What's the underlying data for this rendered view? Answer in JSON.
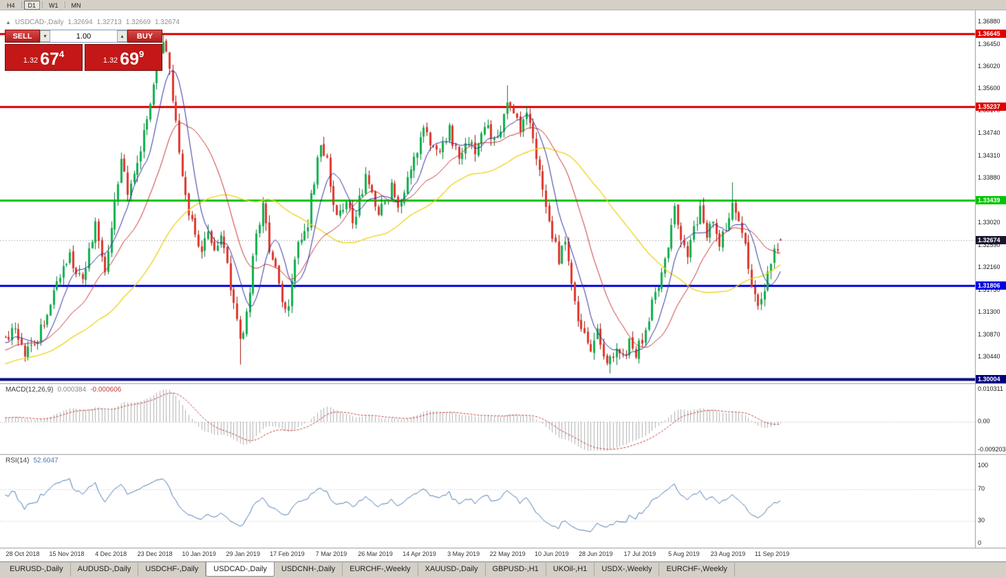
{
  "toolbar": {
    "timeframes": [
      "H4",
      "D1",
      "W1",
      "MN"
    ],
    "active": "D1"
  },
  "icons": {
    "ohlc_toggle_icon": "▲",
    "volume_up_icon": "▴",
    "volume_down_icon": "▾"
  },
  "quote_header": {
    "symbol": "USDCAD-,Daily",
    "open": "1.32694",
    "high": "1.32713",
    "low": "1.32669",
    "close": "1.32674"
  },
  "trade_panel": {
    "sell_label": "SELL",
    "buy_label": "BUY",
    "volume": "1.00",
    "bid": {
      "prefix": "1.32",
      "big": "67",
      "sup": "4"
    },
    "ask": {
      "prefix": "1.32",
      "big": "69",
      "sup": "9"
    }
  },
  "price_axis": {
    "ticks": [
      "1.36880",
      "1.36450",
      "1.36020",
      "1.35600",
      "1.35170",
      "1.34740",
      "1.34310",
      "1.33880",
      "1.33450",
      "1.33020",
      "1.32590",
      "1.32160",
      "1.31730",
      "1.31300",
      "1.30870",
      "1.30440",
      "1.30010"
    ],
    "current": {
      "label": "1.32674",
      "price": 1.32674,
      "bg": "#16162e"
    }
  },
  "indicator_panels": {
    "macd": {
      "label": "MACD(12,26,9)",
      "main_value": "0.000384",
      "signal_value": "-0.000606",
      "scale_top": "0.010311",
      "scale_zero": "0.00",
      "scale_bottom": "-0.009203"
    },
    "rsi": {
      "label": "RSI(14)",
      "value": "52.6047",
      "scale_top": "100",
      "level_upper": "70",
      "level_lower": "30",
      "scale_bottom": "0"
    }
  },
  "date_axis": [
    "28 Oct 2018",
    "15 Nov 2018",
    "4 Dec 2018",
    "23 Dec 2018",
    "10 Jan 2019",
    "29 Jan 2019",
    "17 Feb 2019",
    "7 Mar 2019",
    "26 Mar 2019",
    "14 Apr 2019",
    "3 May 2019",
    "22 May 2019",
    "10 Jun 2019",
    "28 Jun 2019",
    "17 Jul 2019",
    "5 Aug 2019",
    "23 Aug 2019",
    "11 Sep 2019"
  ],
  "tabs": {
    "active_index": 3,
    "items": [
      "EURUSD-,Daily",
      "AUDUSD-,Daily",
      "USDCHF-,Daily",
      "USDCAD-,Daily",
      "USDCNH-,Daily",
      "EURCHF-,Weekly",
      "XAUUSD-,Daily",
      "GBPUSD-,H1",
      "UKOil-,H1",
      "USDX-,Weekly",
      "EURCHF-,Weekly"
    ],
    "note": ""
  },
  "chart_data": {
    "type": "candlestick",
    "symbol": "USDCAD-",
    "timeframe": "Daily",
    "current_quote": {
      "open": 1.32694,
      "high": 1.32713,
      "low": 1.32669,
      "close": 1.32674,
      "bid": 1.32674,
      "ask": 1.32699
    },
    "ylim": [
      1.2996,
      1.3696
    ],
    "horizontal_lines": [
      {
        "price": 1.36645,
        "label": "1.36645",
        "color": "#dd0000",
        "width": 3
      },
      {
        "price": 1.35237,
        "label": "1.35237",
        "color": "#dd0000",
        "width": 3
      },
      {
        "price": 1.33439,
        "label": "1.33439",
        "color": "#00c400",
        "width": 3
      },
      {
        "price": 1.31806,
        "label": "1.31806",
        "color": "#0000e0",
        "width": 3
      },
      {
        "price": 1.30004,
        "label": "1.30004",
        "color": "#000080",
        "width": 4
      }
    ],
    "moving_averages": [
      {
        "period": 8,
        "color": "#2e2ea0"
      },
      {
        "period": 20,
        "color": "#c83232"
      },
      {
        "period": 50,
        "color": "#efd521"
      }
    ],
    "indicators": [
      {
        "name": "MACD",
        "params": [
          12,
          26,
          9
        ],
        "main": 0.000384,
        "signal": -0.000606,
        "range": [
          -0.009203,
          0.010311
        ]
      },
      {
        "name": "RSI",
        "params": [
          14
        ],
        "value": 52.6047,
        "levels": [
          30,
          70
        ],
        "range": [
          0,
          100
        ]
      }
    ],
    "price_anchors": [
      [
        0,
        1.3075
      ],
      [
        3,
        1.3092
      ],
      [
        6,
        1.3048
      ],
      [
        9,
        1.3072
      ],
      [
        12,
        1.3108
      ],
      [
        16,
        1.3185
      ],
      [
        20,
        1.3235
      ],
      [
        24,
        1.3195
      ],
      [
        28,
        1.3292
      ],
      [
        31,
        1.3215
      ],
      [
        34,
        1.3335
      ],
      [
        36,
        1.3425
      ],
      [
        38,
        1.3365
      ],
      [
        41,
        1.3405
      ],
      [
        43,
        1.347
      ],
      [
        45,
        1.3535
      ],
      [
        47,
        1.3605
      ],
      [
        49,
        1.365
      ],
      [
        51,
        1.359
      ],
      [
        53,
        1.349
      ],
      [
        55,
        1.339
      ],
      [
        57,
        1.332
      ],
      [
        59,
        1.327
      ],
      [
        61,
        1.3242
      ],
      [
        63,
        1.3292
      ],
      [
        65,
        1.3252
      ],
      [
        67,
        1.3282
      ],
      [
        69,
        1.3225
      ],
      [
        71,
        1.3135
      ],
      [
        73,
        1.3072
      ],
      [
        75,
        1.3125
      ],
      [
        78,
        1.3282
      ],
      [
        80,
        1.333
      ],
      [
        82,
        1.3255
      ],
      [
        84,
        1.3205
      ],
      [
        86,
        1.3155
      ],
      [
        88,
        1.3135
      ],
      [
        90,
        1.3225
      ],
      [
        92,
        1.328
      ],
      [
        94,
        1.3305
      ],
      [
        96,
        1.3385
      ],
      [
        98,
        1.3445
      ],
      [
        100,
        1.342
      ],
      [
        102,
        1.3335
      ],
      [
        104,
        1.3312
      ],
      [
        106,
        1.3352
      ],
      [
        108,
        1.3302
      ],
      [
        110,
        1.3342
      ],
      [
        112,
        1.3382
      ],
      [
        114,
        1.3352
      ],
      [
        116,
        1.3315
      ],
      [
        118,
        1.3342
      ],
      [
        120,
        1.3372
      ],
      [
        122,
        1.3342
      ],
      [
        124,
        1.3362
      ],
      [
        126,
        1.3392
      ],
      [
        128,
        1.3442
      ],
      [
        130,
        1.3492
      ],
      [
        132,
        1.3462
      ],
      [
        134,
        1.3432
      ],
      [
        136,
        1.3452
      ],
      [
        138,
        1.3482
      ],
      [
        140,
        1.3442
      ],
      [
        142,
        1.3432
      ],
      [
        144,
        1.3462
      ],
      [
        146,
        1.3432
      ],
      [
        148,
        1.3462
      ],
      [
        150,
        1.3492
      ],
      [
        152,
        1.3452
      ],
      [
        154,
        1.3482
      ],
      [
        156,
        1.3545
      ],
      [
        158,
        1.3502
      ],
      [
        160,
        1.3482
      ],
      [
        162,
        1.3512
      ],
      [
        164,
        1.3472
      ],
      [
        166,
        1.3392
      ],
      [
        168,
        1.3332
      ],
      [
        170,
        1.3282
      ],
      [
        172,
        1.3232
      ],
      [
        174,
        1.3262
      ],
      [
        176,
        1.3182
      ],
      [
        178,
        1.3122
      ],
      [
        180,
        1.3082
      ],
      [
        182,
        1.3062
      ],
      [
        184,
        1.3088
      ],
      [
        186,
        1.3052
      ],
      [
        188,
        1.3032
      ],
      [
        190,
        1.3062
      ],
      [
        192,
        1.3042
      ],
      [
        194,
        1.3072
      ],
      [
        196,
        1.3052
      ],
      [
        198,
        1.3082
      ],
      [
        200,
        1.3122
      ],
      [
        202,
        1.3162
      ],
      [
        204,
        1.3202
      ],
      [
        206,
        1.3262
      ],
      [
        208,
        1.3322
      ],
      [
        210,
        1.3272
      ],
      [
        212,
        1.3232
      ],
      [
        214,
        1.3292
      ],
      [
        216,
        1.3322
      ],
      [
        218,
        1.3282
      ],
      [
        220,
        1.3312
      ],
      [
        222,
        1.3262
      ],
      [
        224,
        1.3292
      ],
      [
        226,
        1.3332
      ],
      [
        228,
        1.3312
      ],
      [
        230,
        1.3252
      ],
      [
        232,
        1.3182
      ],
      [
        234,
        1.3142
      ],
      [
        236,
        1.3182
      ],
      [
        238,
        1.3232
      ],
      [
        240,
        1.3252
      ],
      [
        241,
        1.32674
      ]
    ],
    "wick_extremes": [
      [
        49,
        "h",
        1.36645
      ],
      [
        156,
        "h",
        1.3565
      ],
      [
        226,
        "h",
        1.3379
      ],
      [
        73,
        "l",
        1.3029
      ],
      [
        188,
        "l",
        1.3012
      ],
      [
        234,
        "l",
        1.3134
      ]
    ]
  }
}
